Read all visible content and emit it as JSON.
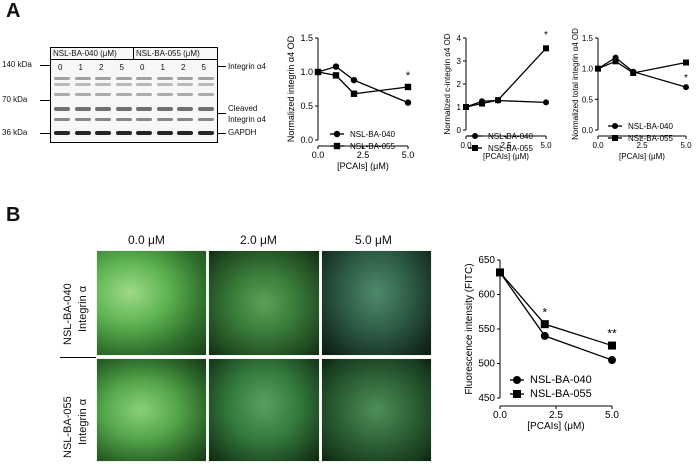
{
  "panel_a": {
    "letter": "A",
    "blot": {
      "group1_label": "NSL-BA-040 (μM)",
      "group2_label": "NSL-BA-055 (μM)",
      "lanes": [
        "0",
        "1",
        "2",
        "5",
        "0",
        "1",
        "2",
        "5"
      ],
      "mw_labels": [
        "140 kDa",
        "70 kDa",
        "36 kDa"
      ],
      "band_labels": [
        "Integrin α4",
        "Cleaved",
        "Integrin α4",
        "GAPDH"
      ]
    }
  },
  "panel_b": {
    "letter": "B",
    "concentrations": [
      "0.0 μM",
      "2.0 μM",
      "5.0 μM"
    ],
    "rows": [
      {
        "name": "NSL-BA-040",
        "sub": "Integrin α"
      },
      {
        "name": "NSL-BA-055",
        "sub": "Integrin α"
      }
    ]
  },
  "chart_data": [
    {
      "type": "line",
      "xlabel": "[PCAIs] (μM)",
      "ylabel": "Normalized integrin α4 OD",
      "xlim": [
        0,
        5
      ],
      "ylim": [
        0,
        1.5
      ],
      "xticks": [
        "0.0",
        "2.5",
        "5.0"
      ],
      "yticks": [
        "0.0",
        "0.5",
        "1.0",
        "1.5"
      ],
      "x": [
        0,
        1,
        2,
        5
      ],
      "series": [
        {
          "name": "NSL-BA-040",
          "marker": "circle",
          "values": [
            1.0,
            1.08,
            0.88,
            0.55
          ]
        },
        {
          "name": "NSL-BA-055",
          "marker": "square",
          "values": [
            1.0,
            0.95,
            0.68,
            0.78
          ]
        }
      ],
      "annotations": [
        {
          "text": "*",
          "x": 5,
          "y": 0.9
        }
      ],
      "legend": "bottom-left"
    },
    {
      "type": "line",
      "xlabel": "[PCAIs] (μM)",
      "ylabel": "Normalized c-integrin α4 OD",
      "xlim": [
        0,
        5
      ],
      "ylim": [
        0,
        4
      ],
      "xticks": [
        "0.0",
        "2.5",
        "5.0"
      ],
      "yticks": [
        "0",
        "1",
        "2",
        "3",
        "4"
      ],
      "x": [
        0,
        1,
        2,
        5
      ],
      "series": [
        {
          "name": "NSL-BA-040",
          "marker": "circle",
          "values": [
            1.0,
            1.25,
            1.28,
            1.2
          ]
        },
        {
          "name": "NSL-BA-055",
          "marker": "square",
          "values": [
            1.0,
            1.15,
            1.3,
            3.55
          ]
        }
      ],
      "annotations": [
        {
          "text": "*",
          "x": 5,
          "y": 4.0
        }
      ],
      "legend": "bottom-right"
    },
    {
      "type": "line",
      "xlabel": "[PCAIs] (μM)",
      "ylabel": "Normalized total integrin α4 OD",
      "xlim": [
        0,
        5
      ],
      "ylim": [
        0,
        1.5
      ],
      "xticks": [
        "0.0",
        "2.5",
        "5.0"
      ],
      "yticks": [
        "0.0",
        "0.5",
        "1.0",
        "1.5"
      ],
      "x": [
        0,
        1,
        2,
        5
      ],
      "series": [
        {
          "name": "NSL-BA-040",
          "marker": "circle",
          "values": [
            1.0,
            1.18,
            0.95,
            0.7
          ]
        },
        {
          "name": "NSL-BA-055",
          "marker": "square",
          "values": [
            1.0,
            1.12,
            0.93,
            1.1
          ]
        }
      ],
      "annotations": [
        {
          "text": "*",
          "x": 5,
          "y": 0.8
        }
      ],
      "legend": "bottom-left"
    },
    {
      "type": "line",
      "xlabel": "[PCAIs] (μM)",
      "ylabel": "Fluorescence intensity (FITC)",
      "xlim": [
        0,
        5
      ],
      "ylim": [
        450,
        650
      ],
      "xticks": [
        "0.0",
        "2.5",
        "5.0"
      ],
      "yticks": [
        "450",
        "500",
        "550",
        "600",
        "650"
      ],
      "x": [
        0,
        2,
        5
      ],
      "series": [
        {
          "name": "NSL-BA-040",
          "marker": "circle",
          "values": [
            632,
            540,
            505
          ]
        },
        {
          "name": "NSL-BA-055",
          "marker": "square",
          "values": [
            632,
            557,
            526
          ]
        }
      ],
      "annotations": [
        {
          "text": "*",
          "x": 2,
          "y": 568
        },
        {
          "text": "**",
          "x": 5,
          "y": 538
        }
      ],
      "legend": "bottom-left"
    }
  ]
}
